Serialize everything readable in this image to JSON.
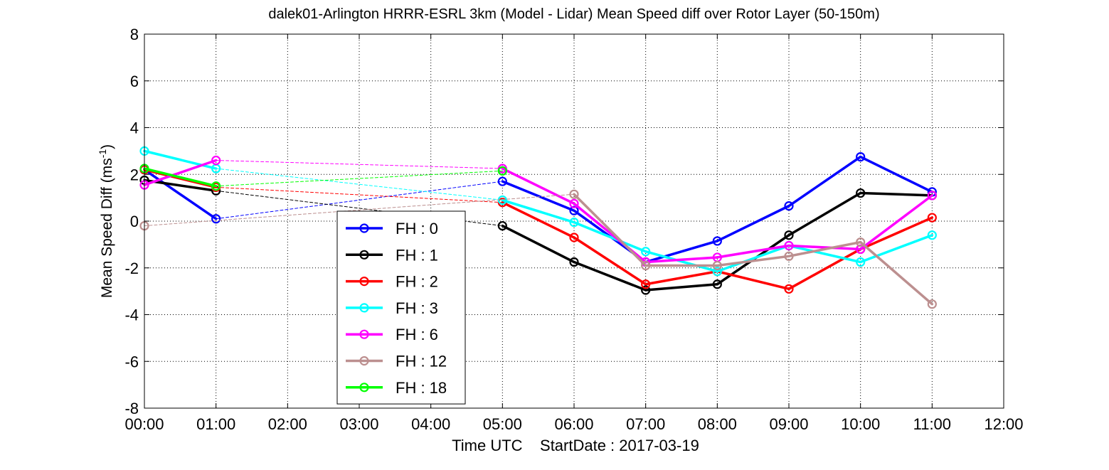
{
  "chart_data": {
    "type": "line",
    "title": "dalek01-Arlington HRRR-ESRL 3km (Model - Lidar) Mean Speed diff over Rotor Layer (50-150m)",
    "xlabel": "Time UTC    StartDate : 2017-03-19",
    "ylabel": "Mean Speed Diff (ms-1)",
    "ylabel_parts": {
      "main": "Mean Speed Diff (ms",
      "sup": "-1",
      "end": ")"
    },
    "xlim": [
      0,
      12
    ],
    "ylim": [
      -8,
      8
    ],
    "xticks": [
      0,
      1,
      2,
      3,
      4,
      5,
      6,
      7,
      8,
      9,
      10,
      11,
      12
    ],
    "xtick_labels": [
      "00:00",
      "01:00",
      "02:00",
      "03:00",
      "04:00",
      "05:00",
      "06:00",
      "07:00",
      "08:00",
      "09:00",
      "10:00",
      "11:00",
      "12:00"
    ],
    "yticks": [
      -8,
      -6,
      -4,
      -2,
      0,
      2,
      4,
      6,
      8
    ],
    "ytick_labels": [
      "-8",
      "-6",
      "-4",
      "-2",
      "0",
      "2",
      "4",
      "6",
      "8"
    ],
    "grid": true,
    "legend_position": "lower-left inside",
    "series": [
      {
        "name": "FH : 0",
        "color": "#0000ff",
        "x": [
          0,
          1,
          5,
          6,
          7,
          8,
          9,
          10,
          11
        ],
        "values": [
          2.2,
          0.1,
          1.7,
          0.45,
          -1.75,
          -0.85,
          0.65,
          2.75,
          1.25
        ]
      },
      {
        "name": "FH : 1",
        "color": "#000000",
        "x": [
          0,
          1,
          5,
          6,
          7,
          8,
          9,
          10,
          11
        ],
        "values": [
          1.75,
          1.3,
          -0.2,
          -1.75,
          -2.95,
          -2.7,
          -0.6,
          1.2,
          1.1
        ]
      },
      {
        "name": "FH : 2",
        "color": "#ff0000",
        "x": [
          0,
          1,
          5,
          6,
          7,
          8,
          9,
          10,
          11
        ],
        "values": [
          2.2,
          1.45,
          0.8,
          -0.7,
          -2.7,
          -2.15,
          -2.9,
          -1.2,
          0.15
        ]
      },
      {
        "name": "FH : 3",
        "color": "#00ffff",
        "x": [
          0,
          1,
          5,
          6,
          7,
          8,
          9,
          10,
          11
        ],
        "values": [
          3.0,
          2.25,
          0.9,
          -0.05,
          -1.3,
          -2.15,
          -1.05,
          -1.75,
          -0.6
        ]
      },
      {
        "name": "FH : 6",
        "color": "#ff00ff",
        "x": [
          0,
          1,
          5,
          6,
          7,
          8,
          9,
          10,
          11
        ],
        "values": [
          1.55,
          2.6,
          2.25,
          0.75,
          -1.75,
          -1.55,
          -1.05,
          -1.2,
          1.1
        ]
      },
      {
        "name": "FH : 12",
        "color": "#bc8f8f",
        "x": [
          0,
          6,
          7,
          8,
          9,
          10,
          11
        ],
        "values": [
          -0.2,
          1.15,
          -1.9,
          -1.9,
          -1.5,
          -0.9,
          -3.55
        ]
      },
      {
        "name": "FH : 18",
        "color": "#00ff00",
        "x": [
          0,
          1,
          5
        ],
        "values": [
          2.25,
          1.5,
          2.15
        ]
      }
    ]
  }
}
